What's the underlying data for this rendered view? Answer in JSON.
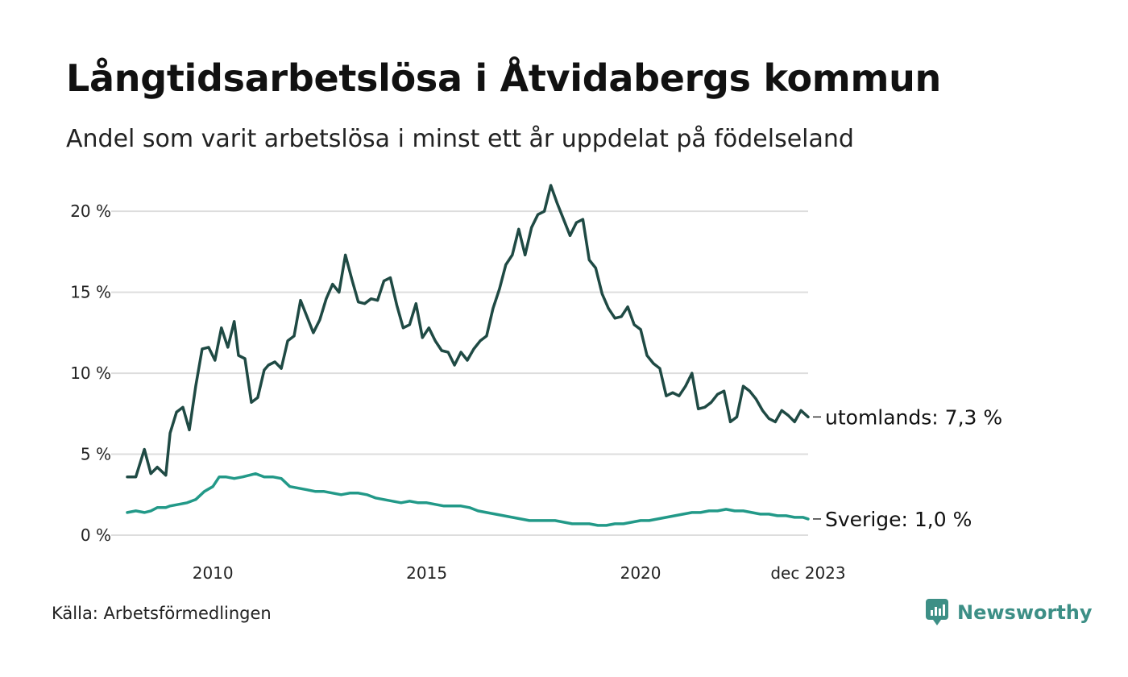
{
  "title": "Långtidsarbetslösa i Åtvidabergs kommun",
  "subtitle": "Andel som varit arbetslösa i minst ett år uppdelat på födelseland",
  "source": "Källa: Arbetsförmedlingen",
  "brand": "Newsworthy",
  "colors": {
    "abroad": "#1f4a44",
    "sweden": "#229988",
    "grid": "#dddddd",
    "brand": "#3d8f86"
  },
  "chart_data": {
    "type": "line",
    "title": "Långtidsarbetslösa i Åtvidabergs kommun",
    "xlabel": "",
    "ylabel": "",
    "ylim": [
      0,
      22
    ],
    "xlim": [
      2008.0,
      2023.917
    ],
    "y_ticks": [
      0,
      5,
      10,
      15,
      20
    ],
    "y_tick_labels": [
      "0 %",
      "5 %",
      "10 %",
      "15 %",
      "20 %"
    ],
    "x_ticks": [
      2010,
      2015,
      2020,
      2023.917
    ],
    "x_tick_labels": [
      "2010",
      "2015",
      "2020",
      "dec 2023"
    ],
    "grid": true,
    "series": [
      {
        "name": "utomlands",
        "label": "utomlands: 7,3 %",
        "color_key": "abroad",
        "x": [
          2008.0,
          2008.2,
          2008.4,
          2008.55,
          2008.7,
          2008.9,
          2009.0,
          2009.15,
          2009.3,
          2009.45,
          2009.6,
          2009.75,
          2009.9,
          2010.05,
          2010.2,
          2010.35,
          2010.5,
          2010.6,
          2010.75,
          2010.9,
          2011.05,
          2011.2,
          2011.3,
          2011.45,
          2011.6,
          2011.75,
          2011.9,
          2012.05,
          2012.2,
          2012.35,
          2012.5,
          2012.65,
          2012.8,
          2012.95,
          2013.1,
          2013.25,
          2013.4,
          2013.55,
          2013.7,
          2013.85,
          2014.0,
          2014.15,
          2014.3,
          2014.45,
          2014.6,
          2014.75,
          2014.9,
          2015.05,
          2015.2,
          2015.35,
          2015.5,
          2015.65,
          2015.8,
          2015.95,
          2016.1,
          2016.25,
          2016.4,
          2016.55,
          2016.7,
          2016.85,
          2017.0,
          2017.15,
          2017.3,
          2017.45,
          2017.6,
          2017.75,
          2017.9,
          2018.05,
          2018.2,
          2018.35,
          2018.5,
          2018.65,
          2018.8,
          2018.95,
          2019.1,
          2019.25,
          2019.4,
          2019.55,
          2019.7,
          2019.85,
          2020.0,
          2020.15,
          2020.3,
          2020.45,
          2020.6,
          2020.75,
          2020.9,
          2021.05,
          2021.2,
          2021.35,
          2021.5,
          2021.65,
          2021.8,
          2021.95,
          2022.1,
          2022.25,
          2022.4,
          2022.55,
          2022.7,
          2022.85,
          2023.0,
          2023.15,
          2023.3,
          2023.45,
          2023.6,
          2023.75,
          2023.917
        ],
        "values": [
          3.6,
          3.6,
          5.3,
          3.8,
          4.2,
          3.7,
          6.3,
          7.6,
          7.9,
          6.5,
          9.2,
          11.5,
          11.6,
          10.8,
          12.8,
          11.6,
          13.2,
          11.1,
          10.9,
          8.2,
          8.5,
          10.2,
          10.5,
          10.7,
          10.3,
          12.0,
          12.3,
          14.5,
          13.5,
          12.5,
          13.3,
          14.6,
          15.5,
          15.0,
          17.3,
          15.8,
          14.4,
          14.3,
          14.6,
          14.5,
          15.7,
          15.9,
          14.2,
          12.8,
          13.0,
          14.3,
          12.2,
          12.8,
          12.0,
          11.4,
          11.3,
          10.5,
          11.3,
          10.8,
          11.5,
          12.0,
          12.3,
          14.0,
          15.2,
          16.7,
          17.3,
          18.9,
          17.3,
          19.0,
          19.8,
          20.0,
          21.6,
          20.5,
          19.5,
          18.5,
          19.3,
          19.5,
          17.0,
          16.5,
          14.9,
          14.0,
          13.4,
          13.5,
          14.1,
          13.0,
          12.7,
          11.1,
          10.6,
          10.3,
          8.6,
          8.8,
          8.6,
          9.2,
          10.0,
          7.8,
          7.9,
          8.2,
          8.7,
          8.9,
          7.0,
          7.3,
          9.2,
          8.9,
          8.4,
          7.7,
          7.2,
          7.0,
          7.7,
          7.4,
          7.0,
          7.7,
          7.3
        ]
      },
      {
        "name": "Sverige",
        "label": "Sverige: 1,0 %",
        "color_key": "sweden",
        "x": [
          2008.0,
          2008.2,
          2008.4,
          2008.55,
          2008.7,
          2008.9,
          2009.0,
          2009.2,
          2009.4,
          2009.6,
          2009.8,
          2010.0,
          2010.15,
          2010.3,
          2010.5,
          2010.7,
          2010.85,
          2011.0,
          2011.2,
          2011.4,
          2011.6,
          2011.8,
          2012.0,
          2012.2,
          2012.4,
          2012.6,
          2012.8,
          2013.0,
          2013.2,
          2013.4,
          2013.6,
          2013.8,
          2014.0,
          2014.2,
          2014.4,
          2014.6,
          2014.8,
          2015.0,
          2015.2,
          2015.4,
          2015.6,
          2015.8,
          2016.0,
          2016.2,
          2016.4,
          2016.6,
          2016.8,
          2017.0,
          2017.2,
          2017.4,
          2017.6,
          2017.8,
          2018.0,
          2018.2,
          2018.4,
          2018.6,
          2018.8,
          2019.0,
          2019.2,
          2019.4,
          2019.6,
          2019.8,
          2020.0,
          2020.2,
          2020.4,
          2020.6,
          2020.8,
          2021.0,
          2021.2,
          2021.4,
          2021.6,
          2021.8,
          2022.0,
          2022.2,
          2022.4,
          2022.6,
          2022.8,
          2023.0,
          2023.2,
          2023.4,
          2023.6,
          2023.8,
          2023.917
        ],
        "values": [
          1.4,
          1.5,
          1.4,
          1.5,
          1.7,
          1.7,
          1.8,
          1.9,
          2.0,
          2.2,
          2.7,
          3.0,
          3.6,
          3.6,
          3.5,
          3.6,
          3.7,
          3.8,
          3.6,
          3.6,
          3.5,
          3.0,
          2.9,
          2.8,
          2.7,
          2.7,
          2.6,
          2.5,
          2.6,
          2.6,
          2.5,
          2.3,
          2.2,
          2.1,
          2.0,
          2.1,
          2.0,
          2.0,
          1.9,
          1.8,
          1.8,
          1.8,
          1.7,
          1.5,
          1.4,
          1.3,
          1.2,
          1.1,
          1.0,
          0.9,
          0.9,
          0.9,
          0.9,
          0.8,
          0.7,
          0.7,
          0.7,
          0.6,
          0.6,
          0.7,
          0.7,
          0.8,
          0.9,
          0.9,
          1.0,
          1.1,
          1.2,
          1.3,
          1.4,
          1.4,
          1.5,
          1.5,
          1.6,
          1.5,
          1.5,
          1.4,
          1.3,
          1.3,
          1.2,
          1.2,
          1.1,
          1.1,
          1.0
        ]
      }
    ]
  }
}
